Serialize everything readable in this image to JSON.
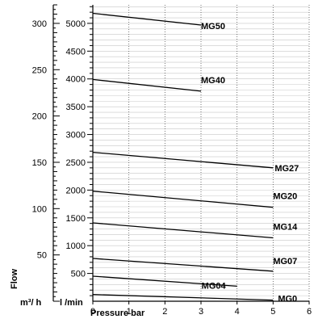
{
  "chart_data": {
    "type": "line",
    "xlabel": "Pressure bar",
    "x_ticks": [
      0,
      1,
      2,
      3,
      4,
      5,
      6
    ],
    "xlim": [
      0,
      6
    ],
    "left_axis": {
      "label_main": "Flow",
      "label_unit": "m³/ h",
      "ticks": [
        50,
        100,
        150,
        200,
        250,
        300
      ],
      "ylim": [
        0,
        320
      ]
    },
    "right_axis": {
      "label_unit": "l /min",
      "ticks": [
        500,
        1000,
        1500,
        2000,
        2500,
        3000,
        3500,
        4000,
        4500,
        5000
      ],
      "ylim": [
        0,
        5333
      ]
    },
    "series": [
      {
        "name": "MG0",
        "x": [
          0,
          5
        ],
        "y": [
          120,
          20
        ]
      },
      {
        "name": "MG04",
        "x": [
          0,
          4
        ],
        "y": [
          450,
          270
        ]
      },
      {
        "name": "MG07",
        "x": [
          0,
          5
        ],
        "y": [
          770,
          540
        ]
      },
      {
        "name": "MG14",
        "x": [
          0,
          5
        ],
        "y": [
          1410,
          1140
        ]
      },
      {
        "name": "MG20",
        "x": [
          0,
          5
        ],
        "y": [
          1980,
          1690
        ]
      },
      {
        "name": "MG27",
        "x": [
          0,
          5
        ],
        "y": [
          2680,
          2400
        ]
      },
      {
        "name": "MG40",
        "x": [
          0,
          3
        ],
        "y": [
          3990,
          3780
        ]
      },
      {
        "name": "MG50",
        "x": [
          0,
          3
        ],
        "y": [
          5180,
          4970
        ]
      }
    ]
  }
}
